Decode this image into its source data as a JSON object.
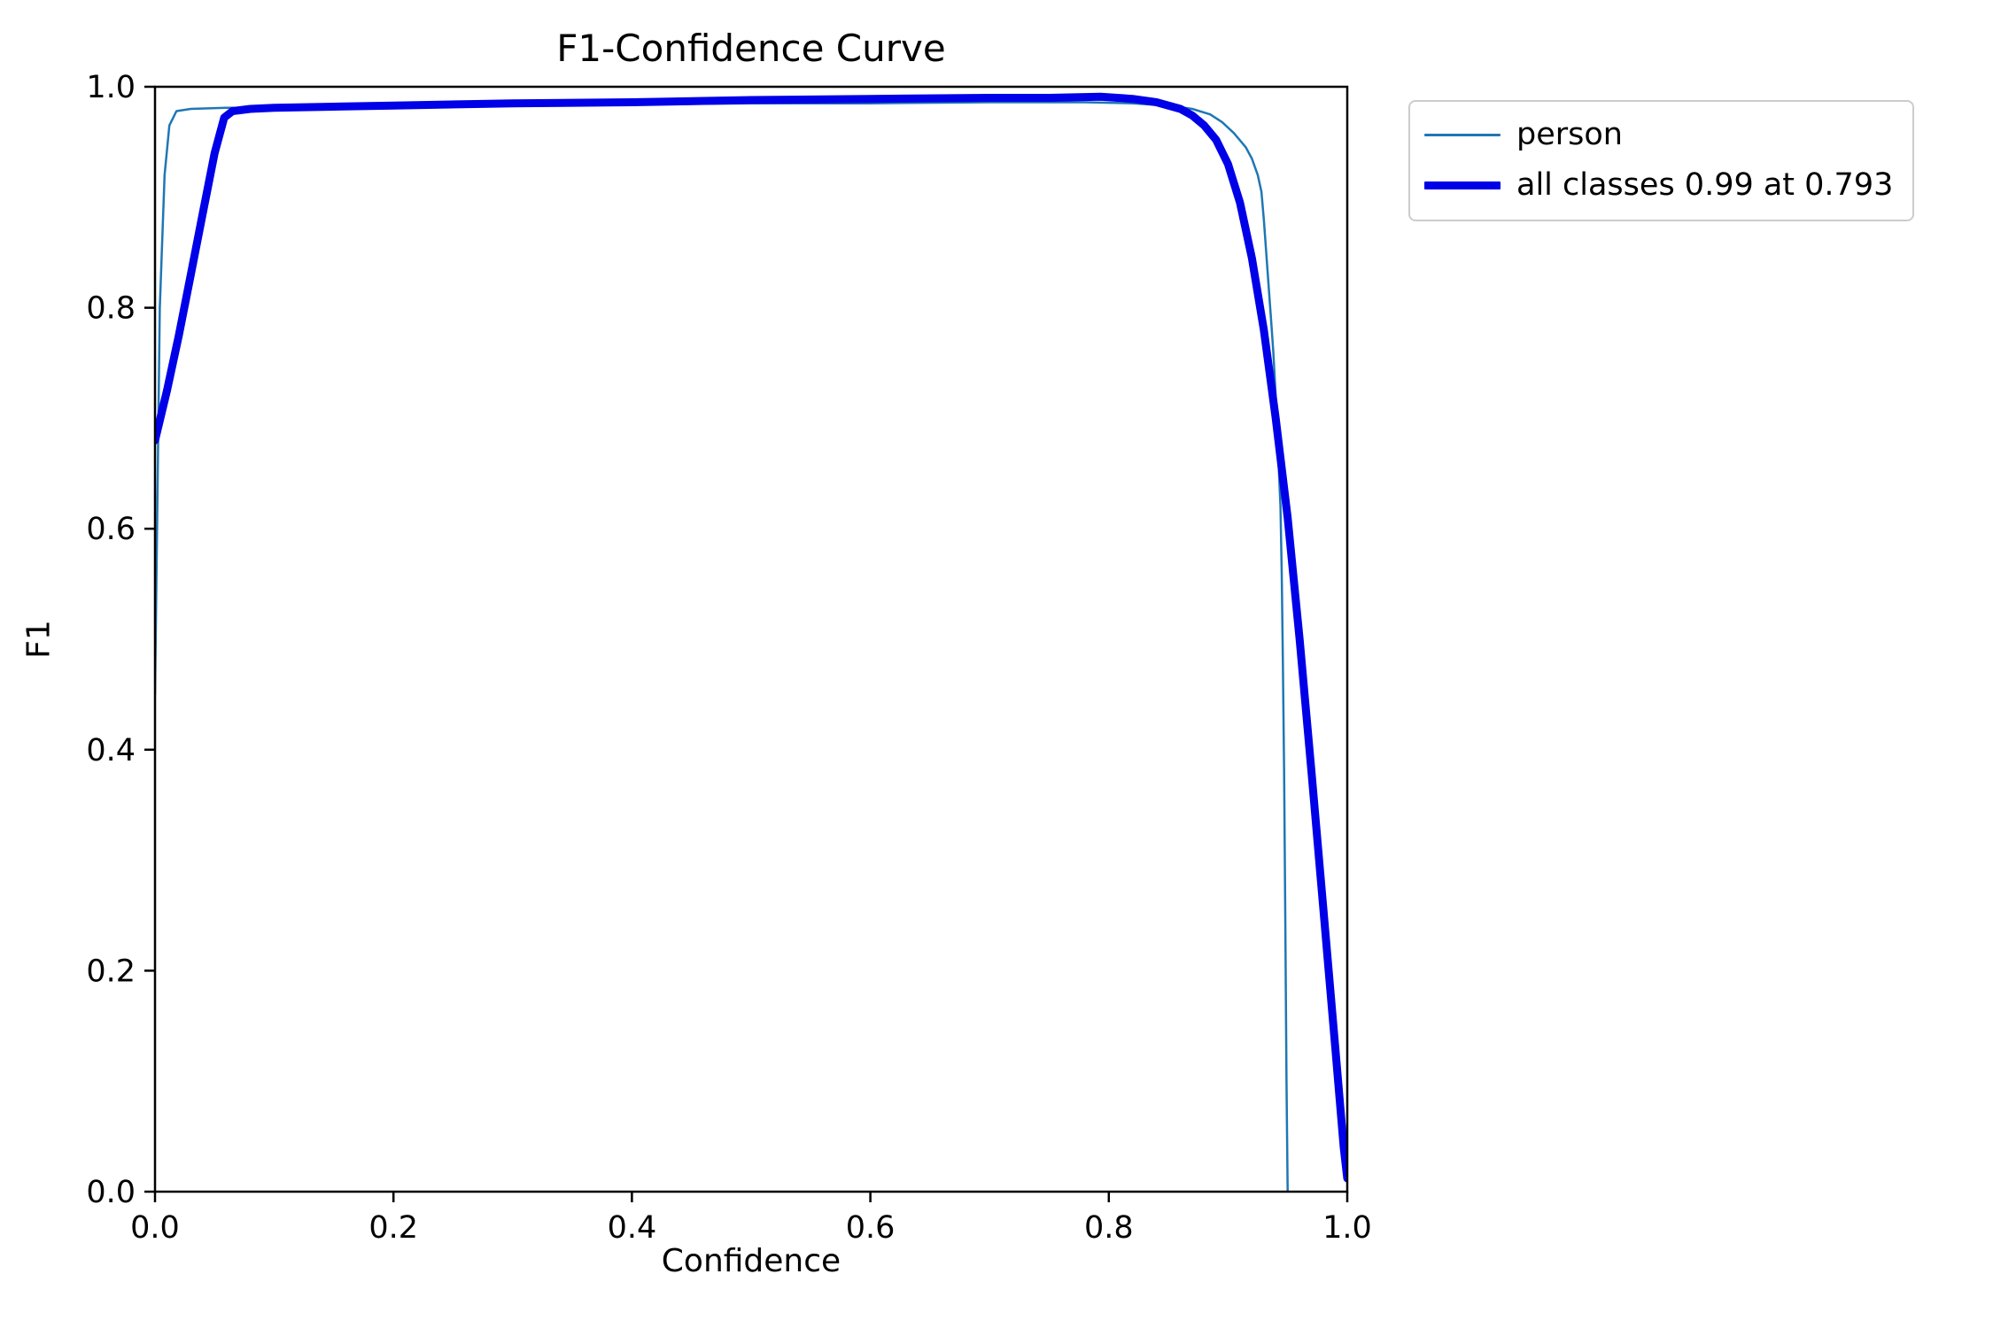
{
  "chart_data": {
    "type": "line",
    "title": "F1-Confidence Curve",
    "xlabel": "Confidence",
    "ylabel": "F1",
    "xlim": [
      0.0,
      1.0
    ],
    "ylim": [
      0.0,
      1.0
    ],
    "xticks": [
      0.0,
      0.2,
      0.4,
      0.6,
      0.8,
      1.0
    ],
    "yticks": [
      0.0,
      0.2,
      0.4,
      0.6,
      0.8,
      1.0
    ],
    "grid": false,
    "legend_position": "outside-upper-right",
    "series": [
      {
        "name": "person",
        "color": "#1f77b4",
        "line_width": 2.5,
        "points": [
          [
            0.0,
            0.45
          ],
          [
            0.004,
            0.8
          ],
          [
            0.008,
            0.92
          ],
          [
            0.012,
            0.965
          ],
          [
            0.018,
            0.978
          ],
          [
            0.03,
            0.98
          ],
          [
            0.06,
            0.981
          ],
          [
            0.1,
            0.981
          ],
          [
            0.15,
            0.982
          ],
          [
            0.2,
            0.982
          ],
          [
            0.3,
            0.983
          ],
          [
            0.4,
            0.984
          ],
          [
            0.5,
            0.985
          ],
          [
            0.6,
            0.985
          ],
          [
            0.7,
            0.986
          ],
          [
            0.78,
            0.986
          ],
          [
            0.82,
            0.985
          ],
          [
            0.85,
            0.983
          ],
          [
            0.87,
            0.98
          ],
          [
            0.885,
            0.975
          ],
          [
            0.895,
            0.968
          ],
          [
            0.905,
            0.958
          ],
          [
            0.915,
            0.945
          ],
          [
            0.92,
            0.935
          ],
          [
            0.925,
            0.92
          ],
          [
            0.928,
            0.905
          ],
          [
            0.93,
            0.88
          ],
          [
            0.932,
            0.85
          ],
          [
            0.934,
            0.82
          ],
          [
            0.936,
            0.79
          ],
          [
            0.938,
            0.76
          ],
          [
            0.94,
            0.72
          ],
          [
            0.942,
            0.67
          ],
          [
            0.944,
            0.62
          ],
          [
            0.945,
            0.56
          ],
          [
            0.946,
            0.48
          ],
          [
            0.947,
            0.38
          ],
          [
            0.948,
            0.25
          ],
          [
            0.949,
            0.1
          ],
          [
            0.95,
            0.0
          ]
        ]
      },
      {
        "name": "all classes 0.99 at 0.793",
        "color": "#0000e8",
        "line_width": 9,
        "points": [
          [
            0.0,
            0.68
          ],
          [
            0.01,
            0.725
          ],
          [
            0.02,
            0.775
          ],
          [
            0.03,
            0.83
          ],
          [
            0.04,
            0.885
          ],
          [
            0.05,
            0.94
          ],
          [
            0.058,
            0.972
          ],
          [
            0.065,
            0.978
          ],
          [
            0.08,
            0.98
          ],
          [
            0.1,
            0.981
          ],
          [
            0.15,
            0.982
          ],
          [
            0.2,
            0.983
          ],
          [
            0.3,
            0.985
          ],
          [
            0.4,
            0.986
          ],
          [
            0.5,
            0.988
          ],
          [
            0.6,
            0.989
          ],
          [
            0.7,
            0.99
          ],
          [
            0.75,
            0.99
          ],
          [
            0.793,
            0.991
          ],
          [
            0.82,
            0.989
          ],
          [
            0.84,
            0.986
          ],
          [
            0.86,
            0.98
          ],
          [
            0.87,
            0.974
          ],
          [
            0.88,
            0.965
          ],
          [
            0.89,
            0.952
          ],
          [
            0.9,
            0.93
          ],
          [
            0.91,
            0.895
          ],
          [
            0.92,
            0.845
          ],
          [
            0.93,
            0.78
          ],
          [
            0.94,
            0.7
          ],
          [
            0.95,
            0.61
          ],
          [
            0.96,
            0.5
          ],
          [
            0.97,
            0.38
          ],
          [
            0.98,
            0.255
          ],
          [
            0.99,
            0.13
          ],
          [
            0.997,
            0.04
          ],
          [
            1.0,
            0.012
          ]
        ]
      }
    ]
  }
}
